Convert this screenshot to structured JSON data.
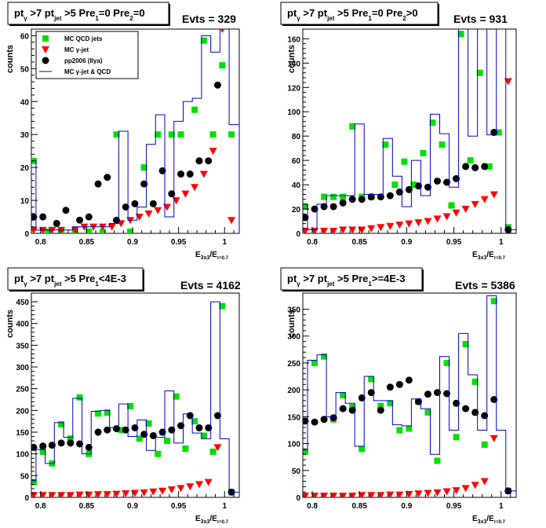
{
  "legend": {
    "entries": [
      {
        "label": "MC QCD jets",
        "marker": "green-square",
        "color": "#00e000"
      },
      {
        "label": "MC γ-jet",
        "marker": "red-triangle-down",
        "color": "#ff0000"
      },
      {
        "label": "pp2006 (Ilya)",
        "marker": "black-circle",
        "color": "#000000"
      },
      {
        "label": "MC γ-jet & QCD",
        "marker": "blue-step-line",
        "color": "#0000cc"
      }
    ]
  },
  "chart_data": [
    {
      "type": "scatter",
      "title": {
        "pt": "pt",
        "pt_sub": "γ",
        "gt1": " >7  ",
        "pt2": "pt",
        "pt2_sub": "jet",
        "cond": " >5 Pre",
        "c1": "1",
        "eq1": "=0 Pre",
        "c2": "2",
        "eq2": "=0"
      },
      "evts": "Evts = 329",
      "ylabel": "counts",
      "xlabel": {
        "main": "E",
        "sub1": "3x3",
        "mid": "/E",
        "sub2": "r=0.7"
      },
      "xlim": [
        0.79,
        1.016
      ],
      "ylim": [
        0,
        62
      ],
      "x_ticks": [
        0.8,
        0.85,
        0.9,
        0.95,
        1
      ],
      "x_tick_labels": [
        "0.8",
        "0.85",
        "0.9",
        "0.95",
        "1"
      ],
      "y_ticks": [
        0,
        10,
        20,
        30,
        40,
        50,
        60
      ],
      "y_tick_labels": [
        "0",
        "10",
        "20",
        "30",
        "40",
        "50",
        "60"
      ],
      "show_legend": true,
      "series": [
        {
          "name": "MC QCD jets",
          "x": [
            0.7925,
            0.8075,
            0.8225,
            0.8375,
            0.8525,
            0.8675,
            0.8825,
            0.8975,
            0.9125,
            0.9275,
            0.9425,
            0.9525,
            0.9675,
            0.9775,
            0.9875,
            0.9975,
            1.0075
          ],
          "y": [
            22,
            0.5,
            0.5,
            0.5,
            0.5,
            0.5,
            30,
            0.5,
            20,
            30,
            30,
            30,
            37.5,
            58.5,
            30,
            51,
            30
          ]
        },
        {
          "name": "MC γ-jet",
          "x": [
            0.7925,
            0.8025,
            0.8125,
            0.8225,
            0.8375,
            0.8475,
            0.8575,
            0.8675,
            0.8775,
            0.8875,
            0.8975,
            0.9075,
            0.9175,
            0.9275,
            0.9375,
            0.9475,
            0.9575,
            0.9675,
            0.9775,
            0.9875,
            0.9975,
            1.0075
          ],
          "y": [
            1,
            1,
            1,
            1,
            1,
            2,
            2,
            2,
            2,
            3,
            4,
            5,
            6,
            7,
            8,
            10,
            12,
            14,
            18,
            25,
            62,
            4
          ]
        },
        {
          "name": "pp2006 (Ilya)",
          "x": [
            0.7925,
            0.8025,
            0.8175,
            0.8275,
            0.8425,
            0.8525,
            0.8625,
            0.8725,
            0.8825,
            0.8925,
            0.9025,
            0.9125,
            0.9225,
            0.9325,
            0.9425,
            0.9525,
            0.9625,
            0.9725,
            0.9825,
            0.9925
          ],
          "y": [
            5,
            5,
            3,
            7,
            4,
            5,
            15,
            17,
            4,
            8,
            9,
            15,
            9,
            19,
            12,
            18,
            18,
            22,
            22,
            45
          ]
        },
        {
          "name": "MC γ-jet & QCD",
          "x": [
            0.79,
            0.795,
            0.805,
            0.815,
            0.825,
            0.835,
            0.845,
            0.855,
            0.865,
            0.875,
            0.885,
            0.895,
            0.905,
            0.915,
            0.925,
            0.935,
            0.945,
            0.955,
            0.965,
            0.975,
            0.985,
            0.995,
            1.005,
            1.016
          ],
          "y": [
            22,
            1,
            1,
            1,
            1,
            2,
            2,
            2,
            2,
            3,
            31,
            4,
            8,
            27,
            36,
            5,
            34,
            40,
            41,
            60,
            55,
            64,
            33,
            33
          ]
        }
      ]
    },
    {
      "type": "scatter",
      "title": {
        "pt": "pt",
        "pt_sub": "γ",
        "gt1": " >7  ",
        "pt2": "pt",
        "pt2_sub": "jet",
        "cond": " >5 Pre",
        "c1": "1",
        "eq1": "=0 Pre",
        "c2": "2",
        "eq2": ">0"
      },
      "evts": "Evts = 931",
      "ylabel": "counts",
      "xlabel": {
        "main": "E",
        "sub1": "3x3",
        "mid": "/E",
        "sub2": "r=0.7"
      },
      "xlim": [
        0.79,
        1.016
      ],
      "ylim": [
        0,
        168
      ],
      "x_ticks": [
        0.8,
        0.85,
        0.9,
        0.95,
        1
      ],
      "x_tick_labels": [
        "0.8",
        "0.85",
        "0.9",
        "0.95",
        "1"
      ],
      "y_ticks": [
        0,
        20,
        40,
        60,
        80,
        100,
        120,
        140,
        160
      ],
      "y_tick_labels": [
        "0",
        "20",
        "40",
        "60",
        "80",
        "100",
        "120",
        "140",
        "160"
      ],
      "show_legend": false,
      "series": [
        {
          "name": "MC QCD jets",
          "x": [
            0.7925,
            0.8125,
            0.8225,
            0.8325,
            0.8425,
            0.8525,
            0.8625,
            0.8775,
            0.8875,
            0.8975,
            0.9075,
            0.9175,
            0.9275,
            0.9375,
            0.9475,
            0.9575,
            0.9675,
            0.9775,
            0.9875,
            0.9975,
            1.0075
          ],
          "y": [
            22,
            30,
            30,
            30,
            88,
            30,
            30,
            73,
            40,
            59,
            40,
            66,
            91,
            73,
            23,
            164,
            60,
            132,
            55,
            83,
            5
          ]
        },
        {
          "name": "MC γ-jet",
          "x": [
            0.7925,
            0.8025,
            0.8125,
            0.8225,
            0.8325,
            0.8425,
            0.8525,
            0.8625,
            0.8725,
            0.8825,
            0.8925,
            0.9025,
            0.9125,
            0.9225,
            0.9325,
            0.9425,
            0.9525,
            0.9625,
            0.9725,
            0.9825,
            0.9925,
            1.0075
          ],
          "y": [
            2,
            2,
            2,
            2,
            3,
            3,
            3,
            4,
            5,
            6,
            7,
            8,
            9,
            10,
            12,
            14,
            17,
            20,
            24,
            28,
            32,
            125
          ]
        },
        {
          "name": "pp2006 (Ilya)",
          "x": [
            0.7925,
            0.8025,
            0.8125,
            0.8225,
            0.8325,
            0.8425,
            0.8525,
            0.8625,
            0.8725,
            0.8825,
            0.8925,
            0.9025,
            0.9125,
            0.9225,
            0.9325,
            0.9425,
            0.9525,
            0.9625,
            0.9725,
            0.9825,
            0.9925,
            1.0075
          ],
          "y": [
            13,
            20,
            22,
            22,
            25,
            28,
            28,
            30,
            30,
            31,
            34,
            36,
            39,
            38,
            43,
            42,
            45,
            55,
            54,
            55,
            83,
            3
          ]
        },
        {
          "name": "MC γ-jet & QCD",
          "x": [
            0.79,
            0.795,
            0.805,
            0.815,
            0.825,
            0.835,
            0.845,
            0.855,
            0.865,
            0.875,
            0.885,
            0.895,
            0.905,
            0.915,
            0.925,
            0.935,
            0.945,
            0.955,
            0.965,
            0.975,
            0.985,
            0.995,
            1.005,
            1.016
          ],
          "y": [
            24,
            3,
            24,
            31,
            31,
            31,
            90,
            32,
            32,
            78,
            47,
            22,
            60,
            31,
            98,
            82,
            38,
            168,
            80,
            168,
            81,
            168,
            3,
            3
          ]
        }
      ]
    },
    {
      "type": "scatter",
      "title": {
        "pt": "pt",
        "pt_sub": "γ",
        "gt1": " >7  ",
        "pt2": "pt",
        "pt2_sub": "jet",
        "cond": " >5 Pre",
        "c1": "1",
        "eq1": "<4E-3",
        "c2": "",
        "eq2": ""
      },
      "evts": "Evts = 4162",
      "ylabel": "counts",
      "xlabel": {
        "main": "E",
        "sub1": "3x3",
        "mid": "/E",
        "sub2": "r=0.7"
      },
      "xlim": [
        0.79,
        1.016
      ],
      "ylim": [
        0,
        470
      ],
      "x_ticks": [
        0.8,
        0.85,
        0.9,
        0.95,
        1
      ],
      "x_tick_labels": [
        "0.8",
        "0.85",
        "0.9",
        "0.95",
        "1"
      ],
      "y_ticks": [
        0,
        50,
        100,
        150,
        200,
        250,
        300,
        350,
        400,
        450
      ],
      "y_tick_labels": [
        "0",
        "50",
        "100",
        "150",
        "200",
        "250",
        "300",
        "350",
        "400",
        "450"
      ],
      "show_legend": false,
      "series": [
        {
          "name": "MC QCD jets",
          "x": [
            0.7925,
            0.8025,
            0.8125,
            0.8225,
            0.8325,
            0.8425,
            0.8525,
            0.8625,
            0.8725,
            0.8875,
            0.8975,
            0.9075,
            0.9175,
            0.9275,
            0.9375,
            0.9475,
            0.9575,
            0.9675,
            0.9775,
            0.9875,
            0.9975,
            1.0075
          ],
          "y": [
            35,
            105,
            78,
            168,
            135,
            230,
            100,
            193,
            195,
            155,
            210,
            135,
            170,
            100,
            130,
            232,
            112,
            175,
            142,
            105,
            440,
            12
          ]
        },
        {
          "name": "MC γ-jet",
          "x": [
            0.7925,
            0.8025,
            0.8125,
            0.8225,
            0.8325,
            0.8425,
            0.8525,
            0.8625,
            0.8725,
            0.8825,
            0.8925,
            0.9025,
            0.9125,
            0.9225,
            0.9325,
            0.9425,
            0.9525,
            0.9625,
            0.9725,
            0.9825,
            0.9925
          ],
          "y": [
            5,
            5,
            5,
            5,
            5,
            6,
            6,
            7,
            7,
            8,
            9,
            10,
            11,
            13,
            15,
            18,
            21,
            25,
            30,
            35,
            115
          ]
        },
        {
          "name": "pp2006 (Ilya)",
          "x": [
            0.7925,
            0.8025,
            0.8125,
            0.8225,
            0.8325,
            0.8425,
            0.8525,
            0.8625,
            0.8725,
            0.8825,
            0.8925,
            0.9025,
            0.9125,
            0.9225,
            0.9325,
            0.9425,
            0.9525,
            0.9625,
            0.9725,
            0.9825,
            0.9925,
            1.0075
          ],
          "y": [
            115,
            118,
            120,
            125,
            125,
            123,
            115,
            150,
            155,
            158,
            155,
            160,
            145,
            142,
            150,
            155,
            165,
            188,
            160,
            160,
            188,
            12
          ]
        },
        {
          "name": "MC γ-jet & QCD",
          "x": [
            0.79,
            0.795,
            0.805,
            0.815,
            0.825,
            0.835,
            0.845,
            0.855,
            0.865,
            0.875,
            0.885,
            0.895,
            0.905,
            0.915,
            0.925,
            0.935,
            0.945,
            0.955,
            0.965,
            0.975,
            0.985,
            0.995,
            1.005,
            1.016
          ],
          "y": [
            38,
            110,
            78,
            172,
            138,
            228,
            100,
            198,
            200,
            160,
            215,
            140,
            178,
            108,
            138,
            245,
            125,
            192,
            148,
            135,
            450,
            135,
            12,
            12
          ]
        }
      ]
    },
    {
      "type": "scatter",
      "title": {
        "pt": "pt",
        "pt_sub": "γ",
        "gt1": " >7  ",
        "pt2": "pt",
        "pt2_sub": "jet",
        "cond": " >5 Pre",
        "c1": "1",
        "eq1": ">=4E-3",
        "c2": "",
        "eq2": ""
      },
      "evts": "Evts = 5386",
      "ylabel": "counts",
      "xlabel": {
        "main": "E",
        "sub1": "3x3",
        "mid": "/E",
        "sub2": "r=0.7"
      },
      "xlim": [
        0.79,
        1.016
      ],
      "ylim": [
        0,
        380
      ],
      "x_ticks": [
        0.8,
        0.85,
        0.9,
        0.95,
        1
      ],
      "x_tick_labels": [
        "0.8",
        "0.85",
        "0.9",
        "0.95",
        "1"
      ],
      "y_ticks": [
        0,
        50,
        100,
        150,
        200,
        250,
        300,
        350
      ],
      "y_tick_labels": [
        "0",
        "50",
        "100",
        "150",
        "200",
        "250",
        "300",
        "350"
      ],
      "show_legend": false,
      "series": [
        {
          "name": "MC QCD jets",
          "x": [
            0.7925,
            0.8025,
            0.8125,
            0.8225,
            0.8325,
            0.8425,
            0.8525,
            0.8625,
            0.8725,
            0.8825,
            0.8925,
            0.9025,
            0.9125,
            0.9225,
            0.9325,
            0.9425,
            0.9525,
            0.9625,
            0.9725,
            0.9825,
            0.9925,
            1.0075
          ],
          "y": [
            85,
            250,
            262,
            145,
            190,
            168,
            90,
            220,
            170,
            175,
            125,
            128,
            178,
            158,
            68,
            250,
            112,
            285,
            215,
            98,
            365,
            12
          ]
        },
        {
          "name": "MC γ-jet",
          "x": [
            0.7925,
            0.8025,
            0.8125,
            0.8225,
            0.8325,
            0.8425,
            0.8525,
            0.8625,
            0.8725,
            0.8825,
            0.8925,
            0.9025,
            0.9125,
            0.9225,
            0.9325,
            0.9425,
            0.9525,
            0.9625,
            0.9725,
            0.9825,
            0.9925
          ],
          "y": [
            3,
            3,
            3,
            3,
            3,
            3,
            4,
            4,
            4,
            5,
            5,
            6,
            7,
            8,
            9,
            11,
            13,
            17,
            23,
            30,
            110
          ]
        },
        {
          "name": "pp2006 (Ilya)",
          "x": [
            0.7925,
            0.8025,
            0.8125,
            0.8225,
            0.8325,
            0.8425,
            0.8525,
            0.8625,
            0.8725,
            0.8825,
            0.8925,
            0.9025,
            0.9125,
            0.9225,
            0.9325,
            0.9425,
            0.9525,
            0.9625,
            0.9725,
            0.9825,
            0.9925,
            1.0075
          ],
          "y": [
            142,
            140,
            145,
            148,
            165,
            162,
            185,
            195,
            162,
            205,
            210,
            218,
            178,
            192,
            195,
            193,
            175,
            165,
            158,
            152,
            182,
            12
          ]
        },
        {
          "name": "MC γ-jet & QCD",
          "x": [
            0.79,
            0.795,
            0.805,
            0.815,
            0.825,
            0.835,
            0.845,
            0.855,
            0.865,
            0.875,
            0.885,
            0.895,
            0.905,
            0.915,
            0.925,
            0.935,
            0.945,
            0.955,
            0.965,
            0.975,
            0.985,
            0.995,
            1.005,
            1.016
          ],
          "y": [
            88,
            255,
            265,
            150,
            195,
            175,
            95,
            225,
            180,
            180,
            135,
            133,
            183,
            165,
            80,
            262,
            125,
            305,
            228,
            125,
            375,
            125,
            12,
            12
          ]
        }
      ]
    }
  ]
}
